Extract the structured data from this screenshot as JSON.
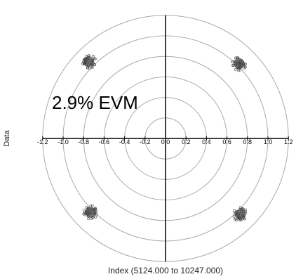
{
  "chart_data": {
    "type": "scatter",
    "title": "",
    "annotation": "2.9% EVM",
    "xlabel": "Index (5124.000 to 10247.000)",
    "ylabel": "Data",
    "xlim": [
      -1.2,
      1.2
    ],
    "ylim": [
      -1.2,
      1.2
    ],
    "x_ticks": [
      "-1.2",
      "-1.0",
      "-0.8",
      "-0.6",
      "-0.4",
      "-0.2",
      "0.0",
      "0.2",
      "0.4",
      "0.6",
      "0.8",
      "1.0",
      "1.2"
    ],
    "x_tick_values": [
      -1.2,
      -1.0,
      -0.8,
      -0.6,
      -0.4,
      -0.2,
      0.0,
      0.2,
      0.4,
      0.6,
      0.8,
      1.0,
      1.2
    ],
    "ring_radii": [
      0.2,
      0.4,
      0.6,
      0.8,
      1.0,
      1.2
    ],
    "grid": "polar rings",
    "series": [
      {
        "points": [
          {
            "x": -0.75,
            "y": 0.75
          },
          {
            "x": 0.72,
            "y": 0.73
          },
          {
            "x": -0.73,
            "y": -0.72
          },
          {
            "x": 0.73,
            "y": -0.74
          }
        ],
        "spread": 0.07
      }
    ],
    "colors": {
      "points": "#7a7a7a",
      "axes": "#000000",
      "rings": "#aaaaaa"
    }
  }
}
